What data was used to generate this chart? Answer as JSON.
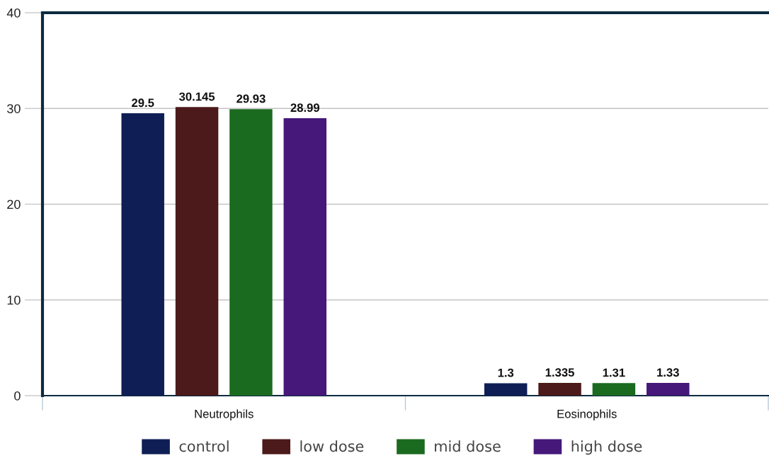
{
  "chart_data": {
    "type": "bar",
    "categories": [
      "Neutrophils",
      "Eosinophils"
    ],
    "series": [
      {
        "name": "control",
        "color": "#0f1f55",
        "values": [
          29.5,
          1.3
        ]
      },
      {
        "name": "low dose",
        "color": "#4c1a1a",
        "values": [
          30.145,
          1.335
        ]
      },
      {
        "name": "mid dose",
        "color": "#1a6a20",
        "values": [
          29.93,
          1.31
        ]
      },
      {
        "name": "high dose",
        "color": "#45187a",
        "values": [
          28.99,
          1.33
        ]
      }
    ],
    "ylim": [
      0,
      40
    ],
    "yticks": [
      0,
      10,
      20,
      30,
      40
    ],
    "grid": "y",
    "legend": "bottom",
    "data_labels": true
  }
}
